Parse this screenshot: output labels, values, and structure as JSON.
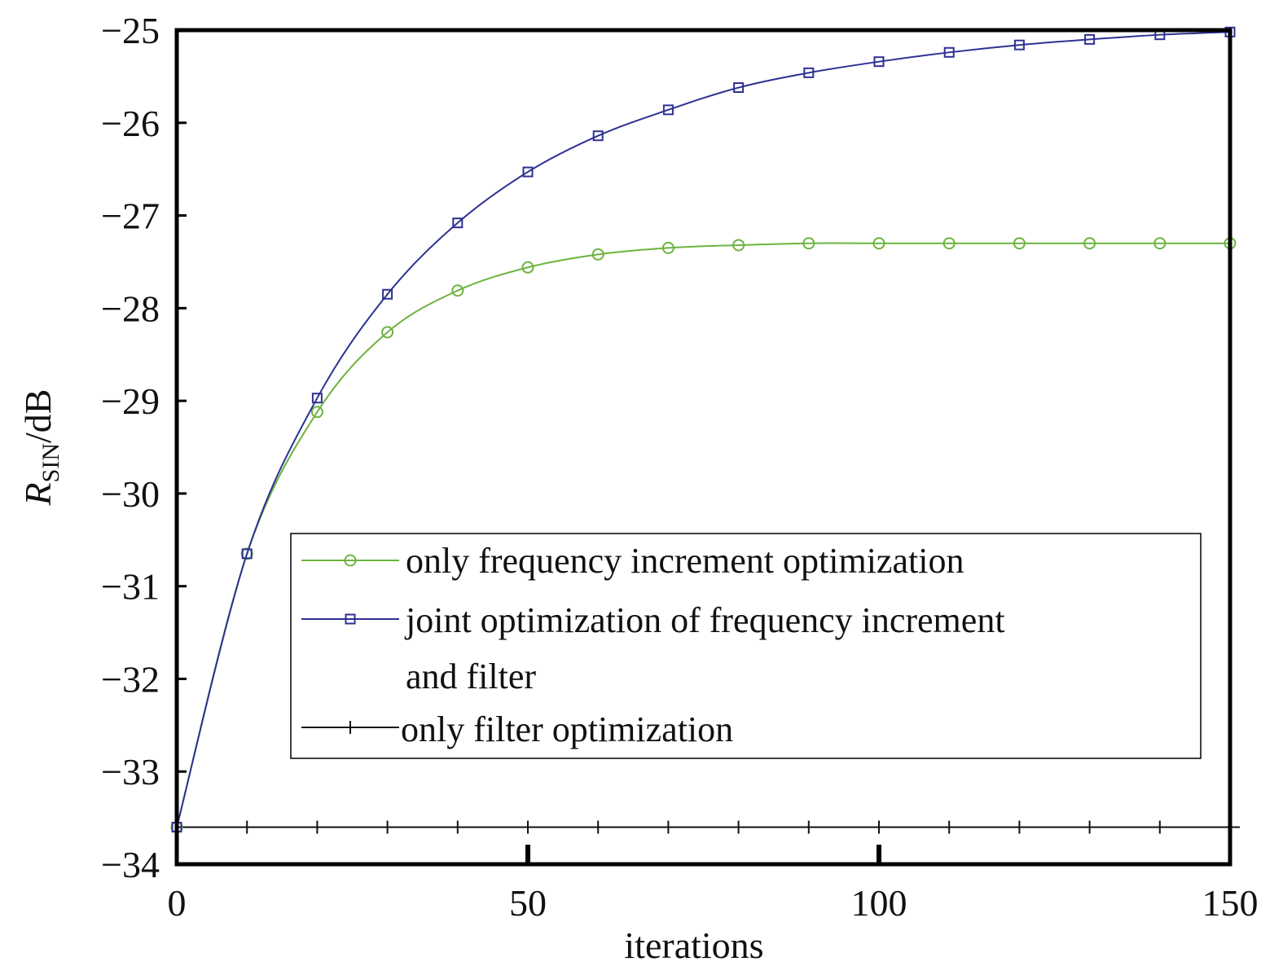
{
  "chart_data": {
    "type": "line",
    "xlabel": "iterations",
    "ylabel_main": "R",
    "ylabel_sub": "SIN",
    "ylabel_unit": "/dB",
    "xlim": [
      0,
      150
    ],
    "ylim": [
      -34,
      -25
    ],
    "xticks": [
      0,
      50,
      100,
      150
    ],
    "xtick_labels": [
      "0",
      "50",
      "100",
      "150"
    ],
    "yticks": [
      -25,
      -26,
      -27,
      -28,
      -29,
      -30,
      -31,
      -32,
      -33,
      -34
    ],
    "ytick_labels": [
      "−25",
      "−26",
      "−27",
      "−28",
      "−29",
      "−30",
      "−31",
      "−32",
      "−33",
      "−34"
    ],
    "grid": false,
    "legend_position": "center-right",
    "x": [
      0,
      10,
      20,
      30,
      40,
      50,
      60,
      70,
      80,
      90,
      100,
      110,
      120,
      130,
      140,
      150
    ],
    "series": [
      {
        "name": "only frequency increment optimization",
        "color": "#6db33f",
        "marker": "circle",
        "values": [
          -33.6,
          -30.65,
          -29.12,
          -28.26,
          -27.81,
          -27.56,
          -27.42,
          -27.35,
          -27.32,
          -27.3,
          -27.3,
          -27.3,
          -27.3,
          -27.3,
          -27.3,
          -27.3
        ]
      },
      {
        "name_lines": [
          "joint optimization of frequency increment",
          "and filter"
        ],
        "color": "#2e3192",
        "marker": "square",
        "values": [
          -33.6,
          -30.65,
          -28.97,
          -27.85,
          -27.08,
          -26.53,
          -26.14,
          -25.86,
          -25.62,
          -25.46,
          -25.34,
          -25.24,
          -25.16,
          -25.1,
          -25.05,
          -25.02
        ]
      },
      {
        "name": "only filter optimization",
        "color": "#111111",
        "marker": "plus",
        "values": [
          -33.6,
          -33.6,
          -33.6,
          -33.6,
          -33.6,
          -33.6,
          -33.6,
          -33.6,
          -33.6,
          -33.6,
          -33.6,
          -33.6,
          -33.6,
          -33.6,
          -33.6,
          -33.6
        ]
      }
    ]
  }
}
